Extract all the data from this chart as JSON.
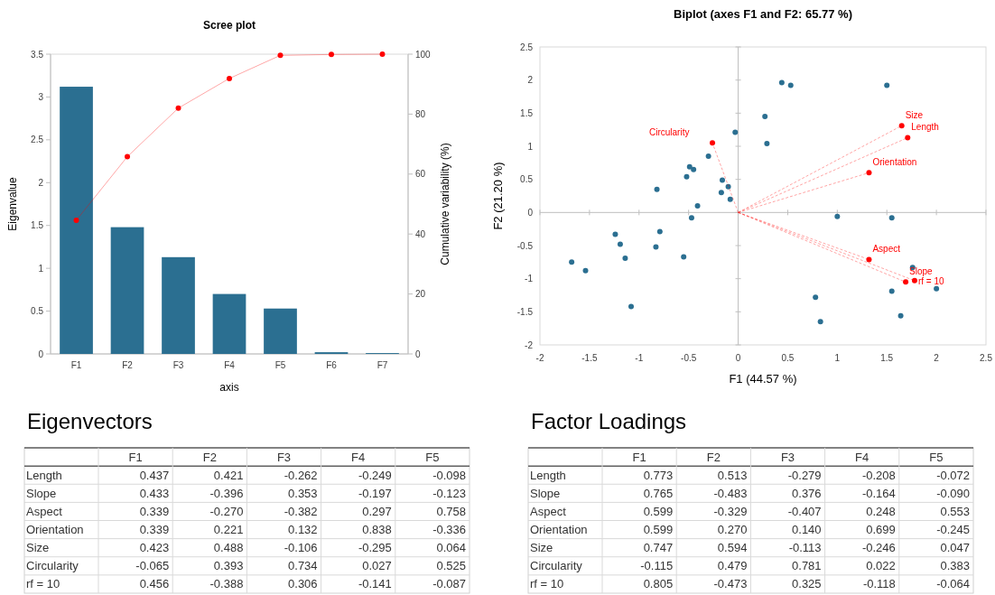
{
  "chart_data": [
    {
      "type": "bar",
      "title": "Scree plot",
      "xlabel": "axis",
      "ylabel": "Eigenvalue",
      "y2label": "Cumulative variability (%)",
      "categories": [
        "F1",
        "F2",
        "F3",
        "F4",
        "F5",
        "F6",
        "F7"
      ],
      "ylim": [
        0,
        3.5
      ],
      "yticks": [
        0,
        0.5,
        1,
        1.5,
        2,
        2.5,
        3,
        3.5
      ],
      "y2lim": [
        0,
        100
      ],
      "y2ticks": [
        0,
        20,
        40,
        60,
        80,
        100
      ],
      "grid": false,
      "series": [
        {
          "type": "bar",
          "color": "#2b6f91",
          "values": [
            3.12,
            1.48,
            1.13,
            0.7,
            0.53,
            0.02,
            0.01
          ]
        },
        {
          "type": "line",
          "axis": "y2",
          "color": "#ff0000",
          "marker": "circle",
          "values": [
            44.6,
            65.8,
            82,
            91.9,
            99.6,
            99.9,
            100
          ]
        }
      ]
    },
    {
      "type": "scatter",
      "title": "Biplot (axes F1 and F2: 65.77 %)",
      "xlabel": "F1 (44.57 %)",
      "ylabel": "F2 (21.20 %)",
      "xlim": [
        -2,
        2.5
      ],
      "ylim": [
        -2,
        2.5
      ],
      "xticks": [
        -2,
        -1.5,
        -1,
        -0.5,
        0,
        0.5,
        1,
        1.5,
        2,
        2.5
      ],
      "yticks": [
        -2,
        -1.5,
        -1,
        -0.5,
        0,
        0.5,
        1,
        1.5,
        2,
        2.5
      ],
      "series": [
        {
          "type": "scatter",
          "color": "#2b6f91",
          "marker": "circle",
          "x": [
            -0.03,
            -0.3,
            -0.49,
            -0.45,
            -0.52,
            -0.16,
            -0.1,
            -0.17,
            -0.08,
            -0.82,
            -0.41,
            -0.47,
            -0.79,
            -1.24,
            -1.19,
            -1.14,
            -0.83,
            -0.55,
            -1.68,
            -1.54,
            -1.08,
            0.44,
            0.53,
            1.5,
            0.27,
            0.29,
            1,
            1.55,
            1.76,
            1.55,
            2,
            0.78,
            0.83,
            1.64
          ],
          "values": [
            1.21,
            0.85,
            0.69,
            0.65,
            0.54,
            0.49,
            0.39,
            0.3,
            0.2,
            0.35,
            0.1,
            -0.08,
            -0.29,
            -0.33,
            -0.48,
            -0.69,
            -0.52,
            -0.67,
            -0.75,
            -0.88,
            -1.42,
            1.96,
            1.92,
            1.92,
            1.45,
            1.04,
            -0.06,
            -0.08,
            -0.83,
            -1.19,
            -1.15,
            -1.28,
            -1.65,
            -1.56
          ]
        },
        {
          "type": "line",
          "name": "Circularity",
          "color": "#ff0000",
          "line_style": "dashed",
          "x": [
            0,
            -0.26
          ],
          "values": [
            0,
            1.05
          ]
        },
        {
          "type": "line",
          "name": "Size",
          "color": "#ff0000",
          "line_style": "dashed",
          "x": [
            0,
            1.65
          ],
          "values": [
            0,
            1.31
          ]
        },
        {
          "type": "line",
          "name": "Length",
          "color": "#ff0000",
          "line_style": "dashed",
          "x": [
            0,
            1.71
          ],
          "values": [
            0,
            1.13
          ]
        },
        {
          "type": "line",
          "name": "Orientation",
          "color": "#ff0000",
          "line_style": "dashed",
          "x": [
            0,
            1.32
          ],
          "values": [
            0,
            0.6
          ]
        },
        {
          "type": "line",
          "name": "Aspect",
          "color": "#ff0000",
          "line_style": "dashed",
          "x": [
            0,
            1.32
          ],
          "values": [
            0,
            -0.71
          ]
        },
        {
          "type": "line",
          "name": "Slope",
          "color": "#ff0000",
          "line_style": "dashed",
          "x": [
            0,
            1.69
          ],
          "values": [
            0,
            -1.05
          ]
        },
        {
          "type": "line",
          "name": "rf = 10",
          "color": "#ff0000",
          "line_style": "dashed",
          "x": [
            0,
            1.78
          ],
          "values": [
            0,
            -1.03
          ]
        }
      ]
    },
    {
      "type": "heatmap",
      "title": "Eigenvectors",
      "cell_labels": [
        [
          "0.437",
          "0.421",
          "-0.262",
          "-0.249",
          "-0.098"
        ],
        [
          "0.433",
          "-0.396",
          "0.353",
          "-0.197",
          "-0.123"
        ],
        [
          "0.339",
          "-0.270",
          "-0.382",
          "0.297",
          "0.758"
        ],
        [
          "0.339",
          "0.221",
          "0.132",
          "0.838",
          "-0.336"
        ],
        [
          "0.423",
          "0.488",
          "-0.106",
          "-0.295",
          "0.064"
        ],
        [
          "-0.065",
          "0.393",
          "0.734",
          "0.027",
          "0.525"
        ],
        [
          "0.456",
          "-0.388",
          "0.306",
          "-0.141",
          "-0.087"
        ]
      ],
      "categories": [
        "F1",
        "F2",
        "F3",
        "F4",
        "F5"
      ],
      "y_categories": [
        "Length",
        "Slope",
        "Aspect",
        "Orientation",
        "Size",
        "Circularity",
        "rf = 10"
      ],
      "cells": [
        [
          0.437,
          0.421,
          -0.262,
          -0.249,
          -0.098
        ],
        [
          0.433,
          -0.396,
          0.353,
          -0.197,
          -0.123
        ],
        [
          0.339,
          -0.27,
          -0.382,
          0.297,
          0.758
        ],
        [
          0.339,
          0.221,
          0.132,
          0.838,
          -0.336
        ],
        [
          0.423,
          0.488,
          -0.106,
          -0.295,
          0.064
        ],
        [
          -0.065,
          0.393,
          0.734,
          0.027,
          0.525
        ],
        [
          0.456,
          -0.388,
          0.306,
          -0.141,
          -0.087
        ]
      ]
    },
    {
      "type": "heatmap",
      "title": "Factor Loadings",
      "cell_labels": [
        [
          "0.773",
          "0.513",
          "-0.279",
          "-0.208",
          "-0.072"
        ],
        [
          "0.765",
          "-0.483",
          "0.376",
          "-0.164",
          "-0.090"
        ],
        [
          "0.599",
          "-0.329",
          "-0.407",
          "0.248",
          "0.553"
        ],
        [
          "0.599",
          "0.270",
          "0.140",
          "0.699",
          "-0.245"
        ],
        [
          "0.747",
          "0.594",
          "-0.113",
          "-0.246",
          "0.047"
        ],
        [
          "-0.115",
          "0.479",
          "0.781",
          "0.022",
          "0.383"
        ],
        [
          "0.805",
          "-0.473",
          "0.325",
          "-0.118",
          "-0.064"
        ]
      ],
      "categories": [
        "F1",
        "F2",
        "F3",
        "F4",
        "F5"
      ],
      "y_categories": [
        "Length",
        "Slope",
        "Aspect",
        "Orientation",
        "Size",
        "Circularity",
        "rf = 10"
      ],
      "cells": [
        [
          0.773,
          0.513,
          -0.279,
          -0.208,
          -0.072
        ],
        [
          0.765,
          -0.483,
          0.376,
          -0.164,
          -0.09
        ],
        [
          0.599,
          -0.329,
          -0.407,
          0.248,
          0.553
        ],
        [
          0.599,
          0.27,
          0.14,
          0.699,
          -0.245
        ],
        [
          0.747,
          0.594,
          -0.113,
          -0.246,
          0.047
        ],
        [
          -0.115,
          0.479,
          0.781,
          0.022,
          0.383
        ],
        [
          0.805,
          -0.473,
          0.325,
          -0.118,
          -0.064
        ]
      ]
    }
  ]
}
